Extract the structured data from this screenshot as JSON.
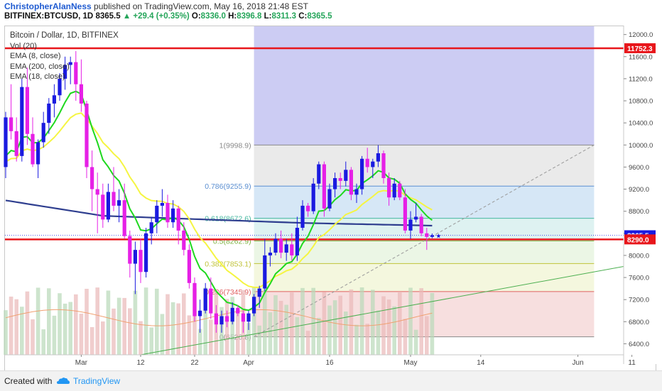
{
  "header": {
    "author": "ChristopherAlanNess",
    "published_text": "published on TradingView.com, May 16, 2018 21:48 EST",
    "symbol": "BITFINEX:BTCUSD, 1D",
    "last": "8365.5",
    "change": "▲ +29.4 (+0.35%)",
    "o_label": "O:",
    "o": "8336.0",
    "h_label": "H:",
    "h": "8396.8",
    "l_label": "L:",
    "l": "8311.3",
    "c_label": "C:",
    "c": "8365.5"
  },
  "legend": {
    "title": "Bitcoin / Dollar, 1D, BITFINEX",
    "items": [
      "Vol (20)",
      "EMA (8, close)",
      "EMA (200, close)",
      "EMA (18, close)"
    ]
  },
  "footer": {
    "created": "Created with",
    "brand": "TradingView"
  },
  "colors": {
    "up": "#1a1ae0",
    "down": "#e620e6",
    "ema8": "#1ed81e",
    "ema18": "#f5f542",
    "ema200": "#2e3e8f",
    "resistance": "#e8161b",
    "trend": "#4caf50"
  },
  "chart_data": {
    "type": "candlestick",
    "ylim": [
      6200,
      12150
    ],
    "y_ticks": [
      6400,
      6800,
      7200,
      7600,
      8000,
      8400,
      8800,
      9200,
      9600,
      10000,
      10400,
      10800,
      11200,
      11600,
      12000
    ],
    "x_tick_labels": [
      {
        "label": "Mar",
        "day": 14
      },
      {
        "label": "12",
        "day": 25
      },
      {
        "label": "22",
        "day": 35
      },
      {
        "label": "Apr",
        "day": 45
      },
      {
        "label": "16",
        "day": 60
      },
      {
        "label": "May",
        "day": 75
      },
      {
        "label": "14",
        "day": 88
      },
      {
        "label": "Jun",
        "day": 106
      },
      {
        "label": "11",
        "day": 116
      }
    ],
    "price_labels": [
      {
        "text": "11752.3",
        "value": 11752.3,
        "color": "#e8161b"
      },
      {
        "text": "8365.5",
        "value": 8365.5,
        "color": "#1a1ae0"
      },
      {
        "text": "8290.0",
        "value": 8290.0,
        "color": "#e8161b"
      }
    ],
    "horizontal_lines": [
      11752.3,
      8290.0
    ],
    "fib": [
      {
        "label": "1(9998.9)",
        "value": 9998.9
      },
      {
        "label": "0.786(9255.9)",
        "value": 9255.9
      },
      {
        "label": "0.618(8672.6)",
        "value": 8672.6
      },
      {
        "label": "0.5(8262.9)",
        "value": 8262.9
      },
      {
        "label": "0.382(7853.1)",
        "value": 7853.1
      },
      {
        "label": "0.236(7345.9)",
        "value": 7345.9
      },
      {
        "label": "0(6526.8)",
        "value": 6526.8
      }
    ],
    "candles": [
      [
        9600,
        10600,
        9400,
        10500
      ],
      [
        10500,
        11100,
        10100,
        10250
      ],
      [
        10250,
        10500,
        9700,
        9800
      ],
      [
        9800,
        11200,
        9700,
        11050
      ],
      [
        11050,
        11400,
        10000,
        10200
      ],
      [
        10200,
        10500,
        9600,
        9650
      ],
      [
        9650,
        10100,
        9400,
        10050
      ],
      [
        10050,
        10600,
        9950,
        10400
      ],
      [
        10400,
        10850,
        10200,
        10750
      ],
      [
        10750,
        11100,
        10500,
        10900
      ],
      [
        10900,
        11300,
        10800,
        11200
      ],
      [
        11200,
        11600,
        11000,
        11450
      ],
      [
        11450,
        11600,
        11100,
        11500
      ],
      [
        11500,
        11700,
        10800,
        11100
      ],
      [
        11100,
        11550,
        10600,
        10750
      ],
      [
        10750,
        10800,
        9400,
        9600
      ],
      [
        9600,
        9900,
        8800,
        9200
      ],
      [
        9200,
        9500,
        8400,
        9100
      ],
      [
        9100,
        9300,
        8500,
        8650
      ],
      [
        8650,
        9300,
        8600,
        9150
      ],
      [
        9150,
        9600,
        8800,
        8900
      ],
      [
        8900,
        9200,
        8600,
        9000
      ],
      [
        9000,
        9300,
        8300,
        8350
      ],
      [
        8350,
        8450,
        7600,
        7850
      ],
      [
        7850,
        8250,
        7300,
        8100
      ],
      [
        8100,
        8300,
        7500,
        7700
      ],
      [
        7700,
        8500,
        7600,
        8400
      ],
      [
        8400,
        8700,
        8200,
        8600
      ],
      [
        8600,
        9000,
        8400,
        8900
      ],
      [
        8900,
        9200,
        8700,
        8950
      ],
      [
        8950,
        9100,
        8500,
        8600
      ],
      [
        8600,
        9000,
        8500,
        8850
      ],
      [
        8850,
        8900,
        8200,
        8450
      ],
      [
        8450,
        8600,
        8000,
        8100
      ],
      [
        8100,
        8200,
        7400,
        7500
      ],
      [
        7500,
        7600,
        6800,
        6900
      ],
      [
        6900,
        7200,
        6600,
        7000
      ],
      [
        7000,
        7500,
        6950,
        7400
      ],
      [
        7400,
        7600,
        6850,
        6950
      ],
      [
        6950,
        7100,
        6600,
        6750
      ],
      [
        6750,
        7000,
        6600,
        6900
      ],
      [
        6900,
        7000,
        6700,
        6800
      ],
      [
        6800,
        7150,
        6750,
        7050
      ],
      [
        7050,
        7100,
        6900,
        6950
      ],
      [
        6950,
        7000,
        6600,
        6800
      ],
      [
        6800,
        7000,
        6650,
        6950
      ],
      [
        6950,
        7300,
        6900,
        7250
      ],
      [
        7250,
        7450,
        7050,
        7400
      ],
      [
        7400,
        8300,
        7350,
        8000
      ],
      [
        8000,
        8150,
        7800,
        8050
      ],
      [
        8050,
        8400,
        8000,
        8300
      ],
      [
        8300,
        8450,
        7950,
        8050
      ],
      [
        8050,
        8300,
        7900,
        8200
      ],
      [
        8200,
        8400,
        7900,
        8000
      ],
      [
        8000,
        8700,
        7900,
        8500
      ],
      [
        8500,
        9000,
        8450,
        8900
      ],
      [
        8900,
        8950,
        8700,
        8800
      ],
      [
        8800,
        9400,
        8750,
        9300
      ],
      [
        9300,
        9700,
        9200,
        9650
      ],
      [
        9650,
        9700,
        8700,
        8850
      ],
      [
        8850,
        9300,
        8800,
        9200
      ],
      [
        9200,
        9500,
        9050,
        9400
      ],
      [
        9400,
        9500,
        9200,
        9350
      ],
      [
        9350,
        9700,
        9250,
        9550
      ],
      [
        9550,
        9600,
        9000,
        9100
      ],
      [
        9100,
        9300,
        8950,
        9200
      ],
      [
        9200,
        9800,
        9100,
        9750
      ],
      [
        9750,
        9950,
        9500,
        9600
      ],
      [
        9600,
        9750,
        9400,
        9700
      ],
      [
        9700,
        9998,
        9600,
        9850
      ],
      [
        9850,
        9900,
        9300,
        9400
      ],
      [
        9400,
        9500,
        8900,
        9050
      ],
      [
        9050,
        9400,
        9000,
        9300
      ],
      [
        9300,
        9350,
        9000,
        9050
      ],
      [
        9050,
        9200,
        8400,
        8450
      ],
      [
        8450,
        8800,
        8300,
        8650
      ],
      [
        8650,
        8950,
        8600,
        8700
      ],
      [
        8700,
        8750,
        8350,
        8400
      ],
      [
        8400,
        8500,
        8100,
        8336
      ],
      [
        8336,
        8396.8,
        8311.3,
        8365.5
      ]
    ]
  }
}
